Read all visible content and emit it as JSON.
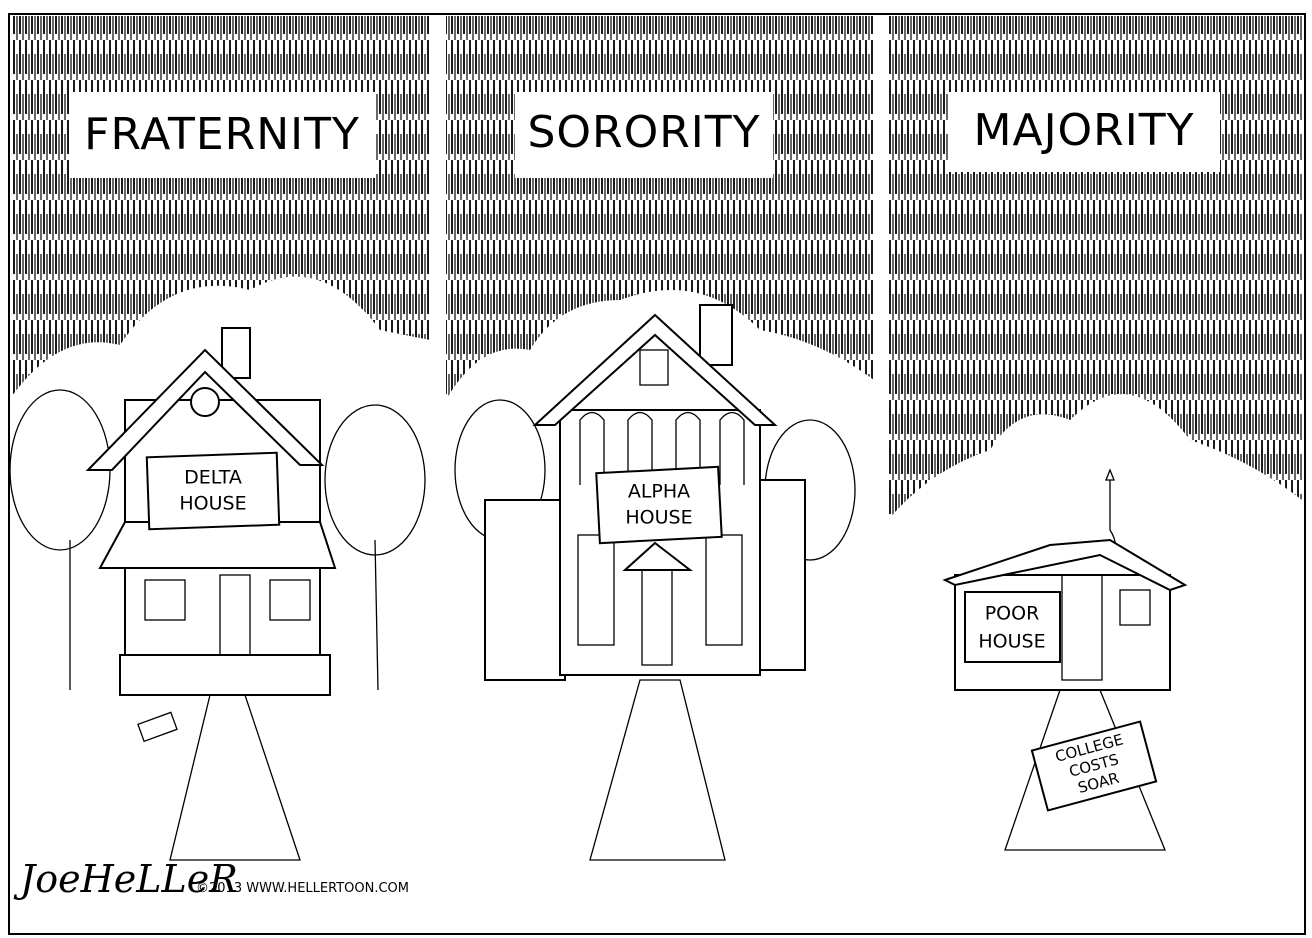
{
  "panels": [
    {
      "title": "FRATERNITY",
      "sign": [
        "DELTA",
        "HOUSE"
      ]
    },
    {
      "title": "SORORITY",
      "sign": [
        "ALPHA",
        "HOUSE"
      ]
    },
    {
      "title": "MAJORITY",
      "sign": [
        "POOR",
        "HOUSE"
      ],
      "newspaper": [
        "COLLEGE",
        "COSTS",
        "SOAR"
      ]
    }
  ],
  "signature": "JoeHeLLeR",
  "copyright": "©2013 WWW.HELLERTOON.COM"
}
